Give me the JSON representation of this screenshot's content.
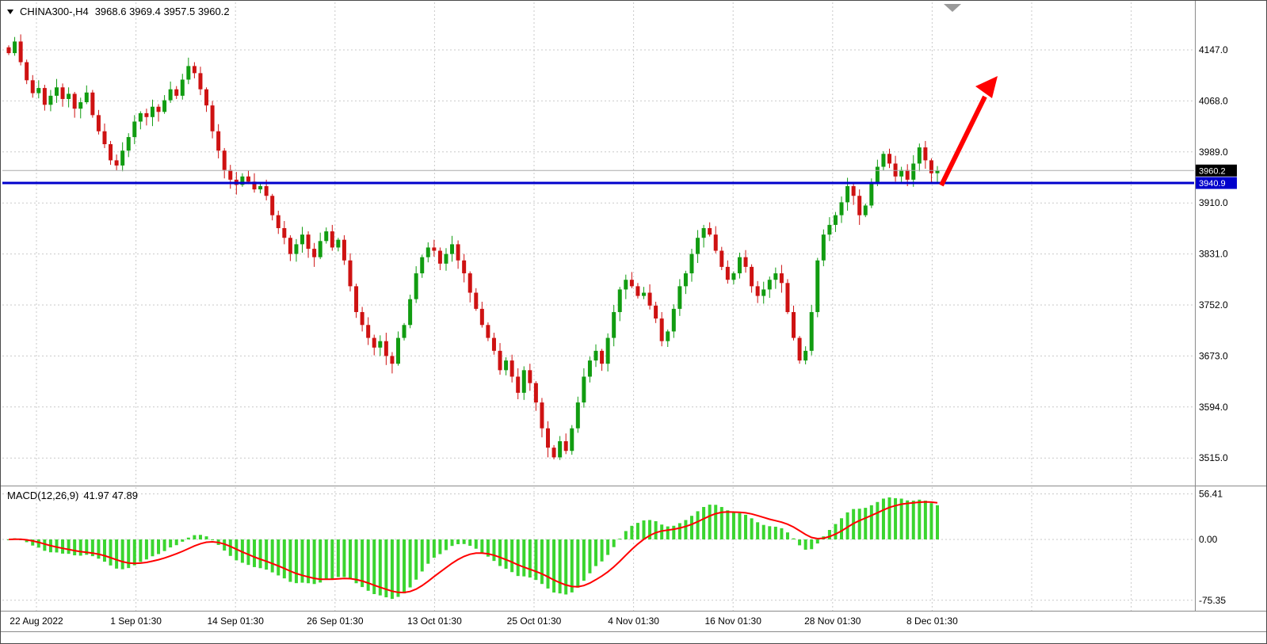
{
  "header": {
    "symbol_period": "CHINA300-,H4",
    "ohlc": "3968.6 3969.4 3957.5 3960.2"
  },
  "price_axis": {
    "tick_labels": [
      "4147.0",
      "4068.0",
      "3989.0",
      "3910.0",
      "3831.0",
      "3752.0",
      "3673.0",
      "3594.0",
      "3515.0"
    ],
    "current_price_label": "3960.2",
    "line_price_label": "3940.9"
  },
  "time_axis": {
    "labels": [
      "22 Aug 2022",
      "1 Sep 01:30",
      "14 Sep 01:30",
      "26 Sep 01:30",
      "13 Oct 01:30",
      "25 Oct 01:30",
      "4 Nov 01:30",
      "16 Nov 01:30",
      "28 Nov 01:30",
      "8 Dec 01:30"
    ]
  },
  "macd": {
    "label": "MACD(12,26,9)",
    "values_text": "41.97 47.89",
    "axis_tick_labels": [
      "56.41",
      "0.00",
      "-75.35"
    ]
  },
  "colors": {
    "bull": "#119C11",
    "bear": "#CE1212",
    "macd_histogram": "#3AD52F",
    "macd_signal": "#FF0000",
    "hline": "#0000CC",
    "arrow": "#FF0000",
    "badge_black": "#000000",
    "grid": "#C9C9C9"
  },
  "chart_data": {
    "type": "candlestick",
    "symbol": "CHINA300-",
    "timeframe": "H4",
    "title": "CHINA300-,H4",
    "last_bar_ohlc": {
      "open": 3968.6,
      "high": 3969.4,
      "low": 3957.5,
      "close": 3960.2
    },
    "price_ticks": [
      4147.0,
      4068.0,
      3989.0,
      3910.0,
      3831.0,
      3752.0,
      3673.0,
      3594.0,
      3515.0
    ],
    "x_labels": [
      "22 Aug 2022",
      "1 Sep 01:30",
      "14 Sep 01:30",
      "26 Sep 01:30",
      "13 Oct 01:30",
      "25 Oct 01:30",
      "4 Nov 01:30",
      "16 Nov 01:30",
      "28 Nov 01:30",
      "8 Dec 01:30"
    ],
    "closes": [
      4142,
      4160,
      4128,
      4100,
      4080,
      4088,
      4062,
      4076,
      4089,
      4071,
      4079,
      4056,
      4066,
      4081,
      4046,
      4021,
      4001,
      3976,
      3968,
      3991,
      4012,
      4036,
      4049,
      4043,
      4059,
      4051,
      4069,
      4086,
      4076,
      4101,
      4122,
      4111,
      4086,
      4061,
      4021,
      3991,
      3961,
      3946,
      3938,
      3951,
      3943,
      3931,
      3936,
      3921,
      3891,
      3871,
      3856,
      3831,
      3846,
      3861,
      3839,
      3826,
      3851,
      3866,
      3841,
      3853,
      3821,
      3781,
      3741,
      3721,
      3701,
      3686,
      3696,
      3673,
      3661,
      3701,
      3721,
      3761,
      3801,
      3826,
      3841,
      3836,
      3816,
      3831,
      3846,
      3821,
      3801,
      3771,
      3746,
      3721,
      3701,
      3681,
      3651,
      3666,
      3641,
      3616,
      3651,
      3631,
      3601,
      3561,
      3531,
      3516,
      3541,
      3526,
      3561,
      3601,
      3641,
      3666,
      3681,
      3661,
      3701,
      3741,
      3776,
      3791,
      3781,
      3766,
      3771,
      3751,
      3731,
      3696,
      3711,
      3746,
      3781,
      3801,
      3831,
      3856,
      3871,
      3861,
      3836,
      3811,
      3791,
      3801,
      3826,
      3811,
      3781,
      3766,
      3776,
      3791,
      3801,
      3786,
      3741,
      3701,
      3666,
      3681,
      3741,
      3821,
      3861,
      3876,
      3891,
      3911,
      3936,
      3921,
      3891,
      3906,
      3941,
      3966,
      3986,
      3971,
      3951,
      3961,
      3946,
      3971,
      3996,
      3976,
      3956,
      3960.2
    ],
    "current_price": 3960.2,
    "horizontal_line": 3940.9,
    "macd": {
      "fast": 12,
      "slow": 26,
      "signal": 9,
      "last_main": 41.97,
      "last_signal": 47.89,
      "axis_ticks": [
        56.41,
        0.0,
        -75.35
      ],
      "histogram_range": [
        -75.35,
        56.41
      ]
    },
    "annotations": [
      {
        "type": "arrow",
        "direction": "up",
        "color": "#FF0000",
        "meaning": "bullish projection above support line 3940.9"
      }
    ]
  }
}
